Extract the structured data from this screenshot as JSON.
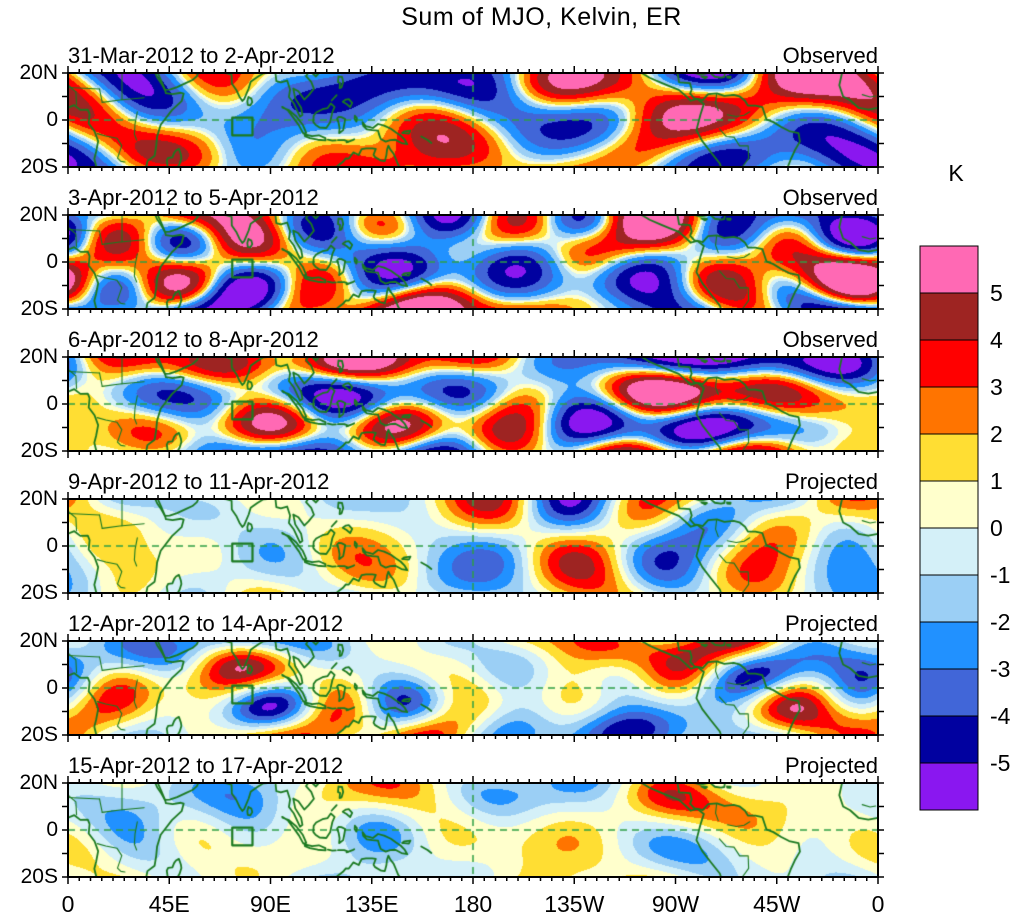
{
  "title": "Sum of MJO, Kelvin, ER",
  "chart_data": {
    "type": "heatmap",
    "title": "Sum of MJO, Kelvin, ER",
    "units": "K",
    "panels": [
      {
        "title": "31-Mar-2012 to 2-Apr-2012",
        "status": "Observed"
      },
      {
        "title": "3-Apr-2012 to 5-Apr-2012",
        "status": "Observed"
      },
      {
        "title": "6-Apr-2012 to 8-Apr-2012",
        "status": "Observed"
      },
      {
        "title": "9-Apr-2012 to 11-Apr-2012",
        "status": "Projected"
      },
      {
        "title": "12-Apr-2012 to 14-Apr-2012",
        "status": "Projected"
      },
      {
        "title": "15-Apr-2012 to 17-Apr-2012",
        "status": "Projected"
      }
    ],
    "x_axis": {
      "tick_labels": [
        "0",
        "45E",
        "90E",
        "135E",
        "180",
        "135W",
        "90W",
        "45W",
        "0"
      ],
      "range_deg": [
        0,
        360
      ]
    },
    "y_axis": {
      "tick_labels": [
        "20N",
        "0",
        "20S"
      ],
      "range_deg": [
        -20,
        20
      ]
    },
    "colorbar": {
      "label": "K",
      "tick_labels": [
        "5",
        "4",
        "3",
        "2",
        "1",
        "0",
        "-1",
        "-2",
        "-3",
        "-4",
        "-5"
      ],
      "levels": [
        5,
        4,
        3,
        2,
        1,
        0,
        -1,
        -2,
        -3,
        -4,
        -5
      ],
      "colors_high_to_low": [
        "#FF69B4",
        "#9E2422",
        "#FF0000",
        "#FF7400",
        "#FFDE33",
        "#FFFFCC",
        "#D4F0F8",
        "#9BCFF5",
        "#2191FF",
        "#4166D8",
        "#0101A0",
        "#8A17F0"
      ]
    },
    "overlays": {
      "equator_dashed_line": true,
      "dateline_dashed_line": true,
      "region_box_deg": {
        "lon_min": 73,
        "lon_max": 82,
        "lat_min": -6.5,
        "lat_max": 1
      },
      "coastline_color": "#1B7A21",
      "dashed_line_color": "#2E9E44"
    }
  },
  "render": {
    "seeds": [
      19,
      101,
      7,
      55,
      83,
      29
    ],
    "vmax": [
      7.3,
      7.5,
      7.0,
      5.4,
      5.2,
      4.2
    ],
    "gamma": [
      0.62,
      0.6,
      0.65,
      0.85,
      0.95,
      1.05
    ]
  }
}
